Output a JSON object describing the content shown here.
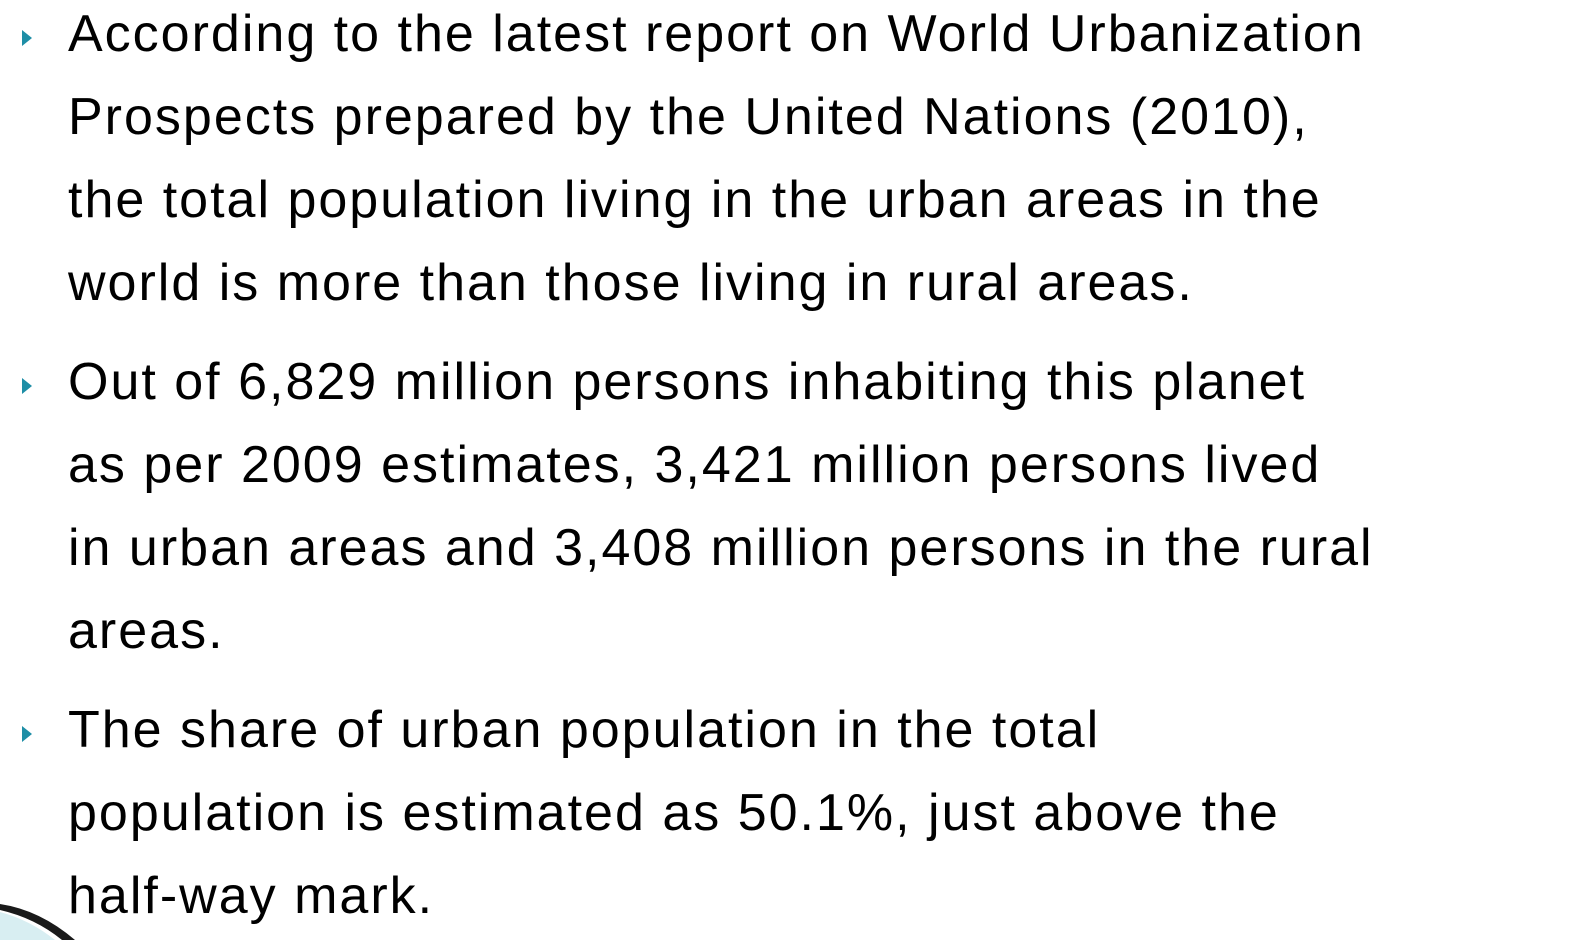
{
  "bullets": [
    {
      "lines": [
        "According to the latest report on World Urbanization",
        "Prospects prepared by the United Nations (2010),",
        "the total population living in the urban areas in the",
        "world is more than those living in rural areas."
      ]
    },
    {
      "lines": [
        "Out of 6,829 million persons inhabiting this planet",
        "as per 2009 estimates, 3,421 million persons lived",
        "in urban areas and 3,408 million persons in the rural",
        "areas."
      ]
    },
    {
      "lines": [
        "The share of urban population in the total",
        "population is estimated as 50.1%, just above the",
        "half-way mark."
      ]
    }
  ]
}
